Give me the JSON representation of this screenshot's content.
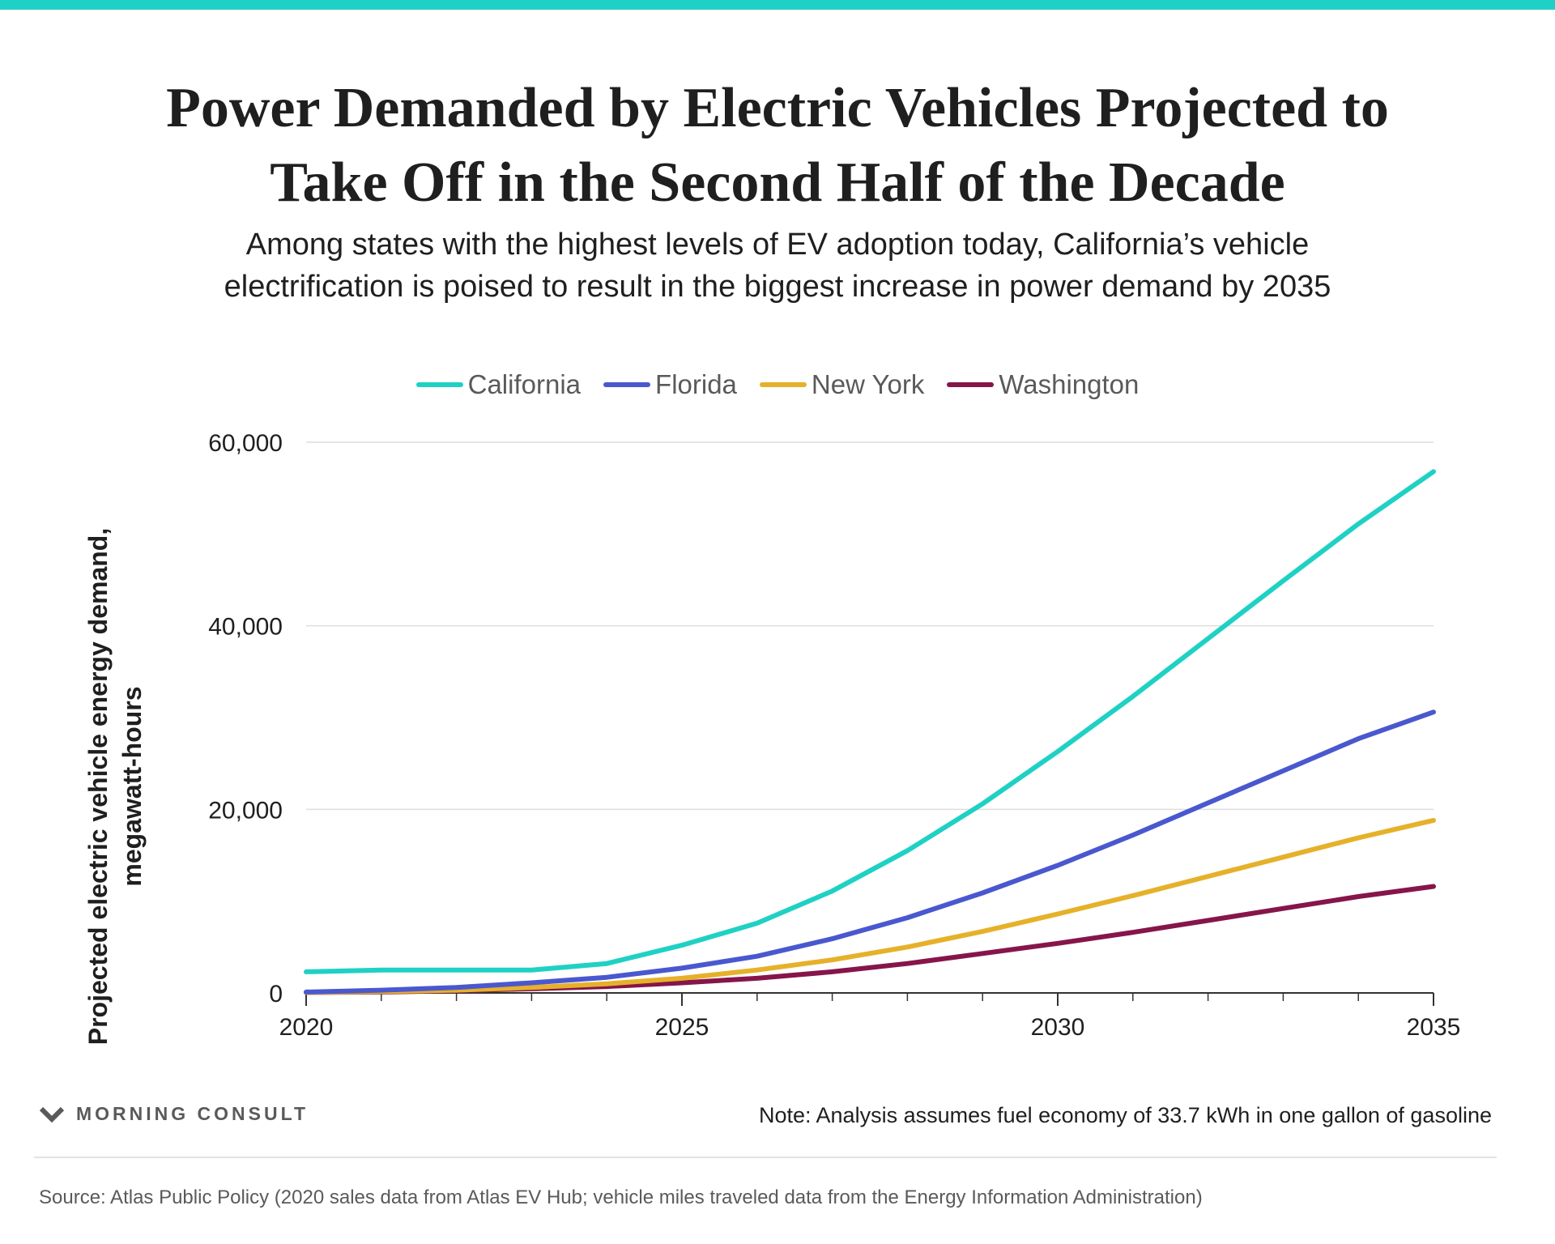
{
  "theme": {
    "accent": "#1fd1c4",
    "text": "#1f1f1f",
    "muted": "#5a5a5a",
    "grid": "#dedede"
  },
  "title_lines": [
    "Power Demanded by Electric Vehicles Projected to",
    "Take Off in the Second Half of the Decade"
  ],
  "subtitle_lines": [
    "Among states with the highest levels of EV adoption today, California’s vehicle",
    "electrification is poised to result in the biggest increase in power demand by 2035"
  ],
  "footer": {
    "brand": "MORNING CONSULT",
    "note": "Note: Analysis assumes fuel economy of 33.7 kWh in one gallon of gasoline",
    "source": "Source: Atlas Public Policy (2020 sales data from Atlas EV Hub; vehicle miles traveled data from the Energy Information Administration)"
  },
  "chart_data": {
    "type": "line",
    "title": "Power Demanded by Electric Vehicles Projected to Take Off in the Second Half of the Decade",
    "subtitle": "Among states with the highest levels of EV adoption today, California’s vehicle electrification is poised to result in the biggest increase in power demand by 2035",
    "ylabel_lines": [
      "Projected electric vehicle energy demand,",
      "megawatt-hours"
    ],
    "xlabel": "",
    "x": [
      2020,
      2021,
      2022,
      2023,
      2024,
      2025,
      2026,
      2027,
      2028,
      2029,
      2030,
      2031,
      2032,
      2033,
      2034,
      2035
    ],
    "xlim": [
      2020,
      2035
    ],
    "ylim": [
      0,
      60000
    ],
    "x_ticks": [
      2020,
      2025,
      2030,
      2035
    ],
    "x_tick_labels": [
      "2020",
      "2025",
      "2030",
      "2035"
    ],
    "y_ticks": [
      0,
      20000,
      40000,
      60000
    ],
    "y_tick_labels": [
      "0",
      "20,000",
      "40,000",
      "60,000"
    ],
    "grid": "horizontal",
    "legend_position": "top-center",
    "series": [
      {
        "name": "California",
        "color": "#1fd1c4",
        "values": [
          2300,
          2500,
          2500,
          2500,
          3200,
          5200,
          7600,
          11100,
          15500,
          20600,
          26300,
          32300,
          38600,
          44900,
          51100,
          56800
        ]
      },
      {
        "name": "Florida",
        "color": "#4a58cf",
        "values": [
          100,
          300,
          600,
          1100,
          1700,
          2700,
          4000,
          5900,
          8200,
          10900,
          13900,
          17200,
          20700,
          24200,
          27700,
          30600
        ]
      },
      {
        "name": "New York",
        "color": "#e6b12a",
        "values": [
          50,
          150,
          300,
          600,
          1000,
          1600,
          2500,
          3600,
          5000,
          6700,
          8600,
          10600,
          12700,
          14800,
          16900,
          18800
        ]
      },
      {
        "name": "Washington",
        "color": "#86154a",
        "values": [
          50,
          100,
          250,
          450,
          700,
          1100,
          1600,
          2300,
          3200,
          4300,
          5400,
          6600,
          7900,
          9200,
          10500,
          11600
        ]
      }
    ]
  }
}
